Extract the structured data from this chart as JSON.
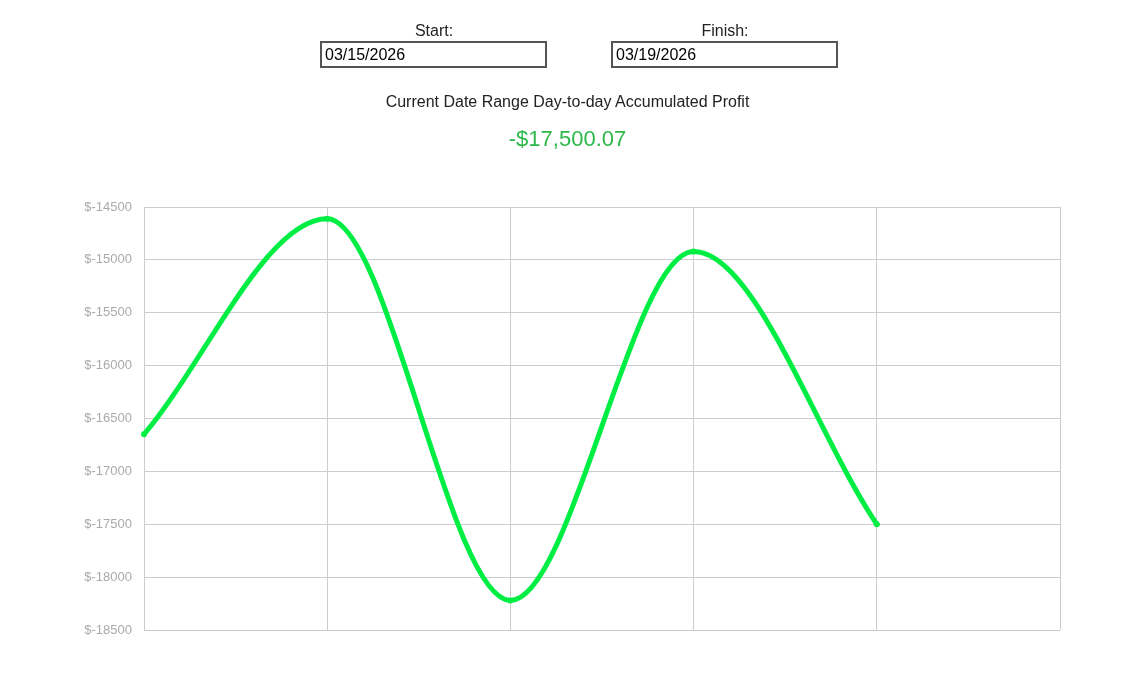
{
  "chart_data": {
    "type": "line",
    "title": "Current Date Range Day-to-day Accumulated Profit",
    "subtitle": "-$17,500.07",
    "annotations": [
      "Start:",
      "03/15/2026",
      "Finish:",
      "03/19/2026"
    ],
    "categories": [
      null,
      null,
      null,
      null,
      null,
      null
    ],
    "series": [
      {
        "color": "#00ee44",
        "values": [
          -16650,
          -14610,
          -18220,
          -14920,
          -17500,
          null
        ]
      }
    ],
    "ylim": [
      -18500,
      -14500
    ],
    "yticks": [
      {
        "value": -18500,
        "label": "$-18500"
      },
      {
        "value": -18000,
        "label": "$-18000"
      },
      {
        "value": -17500,
        "label": "$-17500"
      },
      {
        "value": -17000,
        "label": "$-17000"
      },
      {
        "value": -16500,
        "label": "$-16500"
      },
      {
        "value": -16000,
        "label": "$-16000"
      },
      {
        "value": -15500,
        "label": "$-15500"
      },
      {
        "value": -15000,
        "label": "$-15000"
      },
      {
        "value": -14500,
        "label": "$-14500"
      }
    ],
    "grid": true,
    "legend": false,
    "marker": "circle",
    "line_style": "solid",
    "tick_labels": "y"
  }
}
